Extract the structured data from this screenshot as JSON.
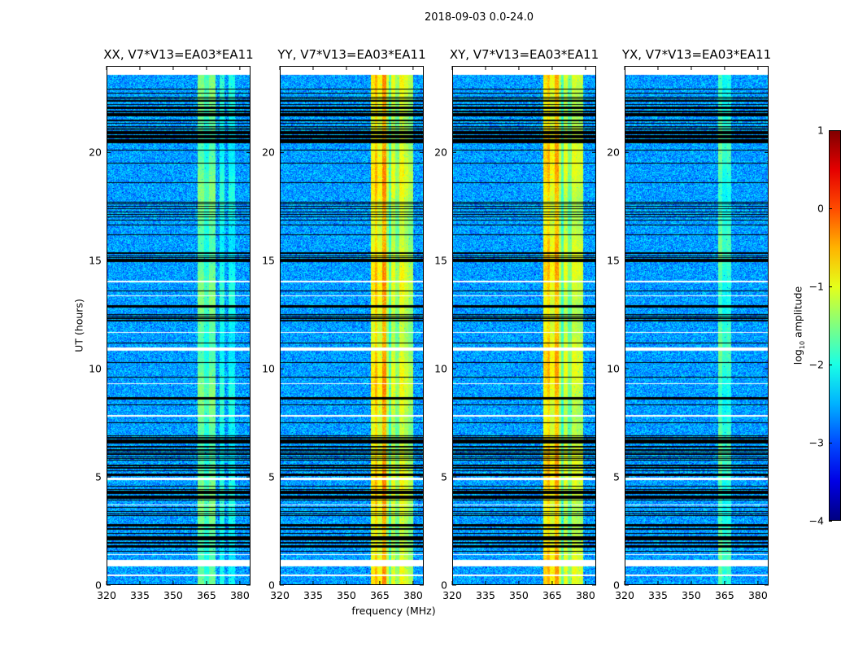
{
  "suptitle": "2018-09-03 0.0-24.0",
  "chart_data": {
    "type": "heatmap",
    "xlabel": "frequency (MHz)",
    "ylabel": "UT (hours)",
    "xlim": [
      320,
      384.8
    ],
    "ylim": [
      0,
      24
    ],
    "data_time_range": [
      0,
      23.6
    ],
    "xticks": [
      320,
      335,
      350,
      365,
      380
    ],
    "yticks": [
      0,
      5,
      10,
      15,
      20
    ],
    "colorbar": {
      "label_prefix": "log",
      "label_sub": "10",
      "label_suffix": " amplitude",
      "range": [
        -4,
        1
      ],
      "ticks": [
        1,
        0,
        -1,
        -2,
        -3,
        -4
      ],
      "colormap": "jet"
    },
    "background_level": -2.6,
    "flagged_dense_ranges_hours": [
      [
        1.5,
        3.0
      ],
      [
        3.2,
        4.6
      ],
      [
        5.0,
        7.0
      ],
      [
        8.3,
        8.7
      ],
      [
        12.2,
        13.0
      ],
      [
        14.8,
        15.4
      ],
      [
        16.6,
        17.9
      ],
      [
        20.4,
        23.0
      ]
    ],
    "flagged_lines_hours": [
      7.5,
      9.6,
      10.3,
      11.2,
      13.6,
      16.2,
      18.6,
      19.5,
      20.1
    ],
    "gap_rows_hours": [
      [
        0.85,
        1.15
      ],
      [
        0.42,
        0.48
      ],
      [
        1.38,
        1.44
      ],
      [
        4.85,
        4.98
      ],
      [
        10.85,
        10.98
      ],
      [
        13.98,
        14.06
      ],
      [
        11.65,
        11.7
      ],
      [
        13.35,
        13.4
      ],
      [
        7.8,
        7.86
      ],
      [
        9.3,
        9.34
      ],
      [
        3.7,
        3.74
      ]
    ],
    "panels": [
      {
        "title": "XX, V7*V13=EA03*EA11",
        "bands": [
          [
            361,
            364,
            -1.6
          ],
          [
            364,
            366,
            -1.9
          ],
          [
            366,
            369,
            -1.6
          ],
          [
            371,
            373,
            -2.0
          ],
          [
            375,
            378,
            -2.1
          ]
        ]
      },
      {
        "title": "YY, V7*V13=EA03*EA11",
        "bands": [
          [
            361,
            363,
            -0.9
          ],
          [
            363,
            364,
            -0.6
          ],
          [
            364,
            366,
            -1.0
          ],
          [
            366,
            368,
            -0.4
          ],
          [
            368,
            369,
            -1.2
          ],
          [
            369,
            370,
            -1.8
          ],
          [
            370,
            372,
            -1.1
          ],
          [
            372,
            374,
            -1.5
          ],
          [
            374,
            376,
            -1.0
          ],
          [
            376,
            378,
            -1.2
          ],
          [
            378,
            380,
            -1.4
          ]
        ]
      },
      {
        "title": "XY, V7*V13=EA03*EA11",
        "bands": [
          [
            361,
            363,
            -0.8
          ],
          [
            363,
            364,
            -0.6
          ],
          [
            364,
            366,
            -1.0
          ],
          [
            366,
            368,
            -0.5
          ],
          [
            368,
            369,
            -1.2
          ],
          [
            369,
            370,
            -1.8
          ],
          [
            370,
            372,
            -1.1
          ],
          [
            372,
            374,
            -1.6
          ],
          [
            374,
            376,
            -1.1
          ],
          [
            376,
            379,
            -1.2
          ]
        ]
      },
      {
        "title": "YX, V7*V13=EA03*EA11",
        "bands": [
          [
            362,
            364,
            -1.7
          ],
          [
            364,
            366,
            -2.0
          ],
          [
            366,
            368,
            -1.9
          ]
        ]
      }
    ]
  }
}
